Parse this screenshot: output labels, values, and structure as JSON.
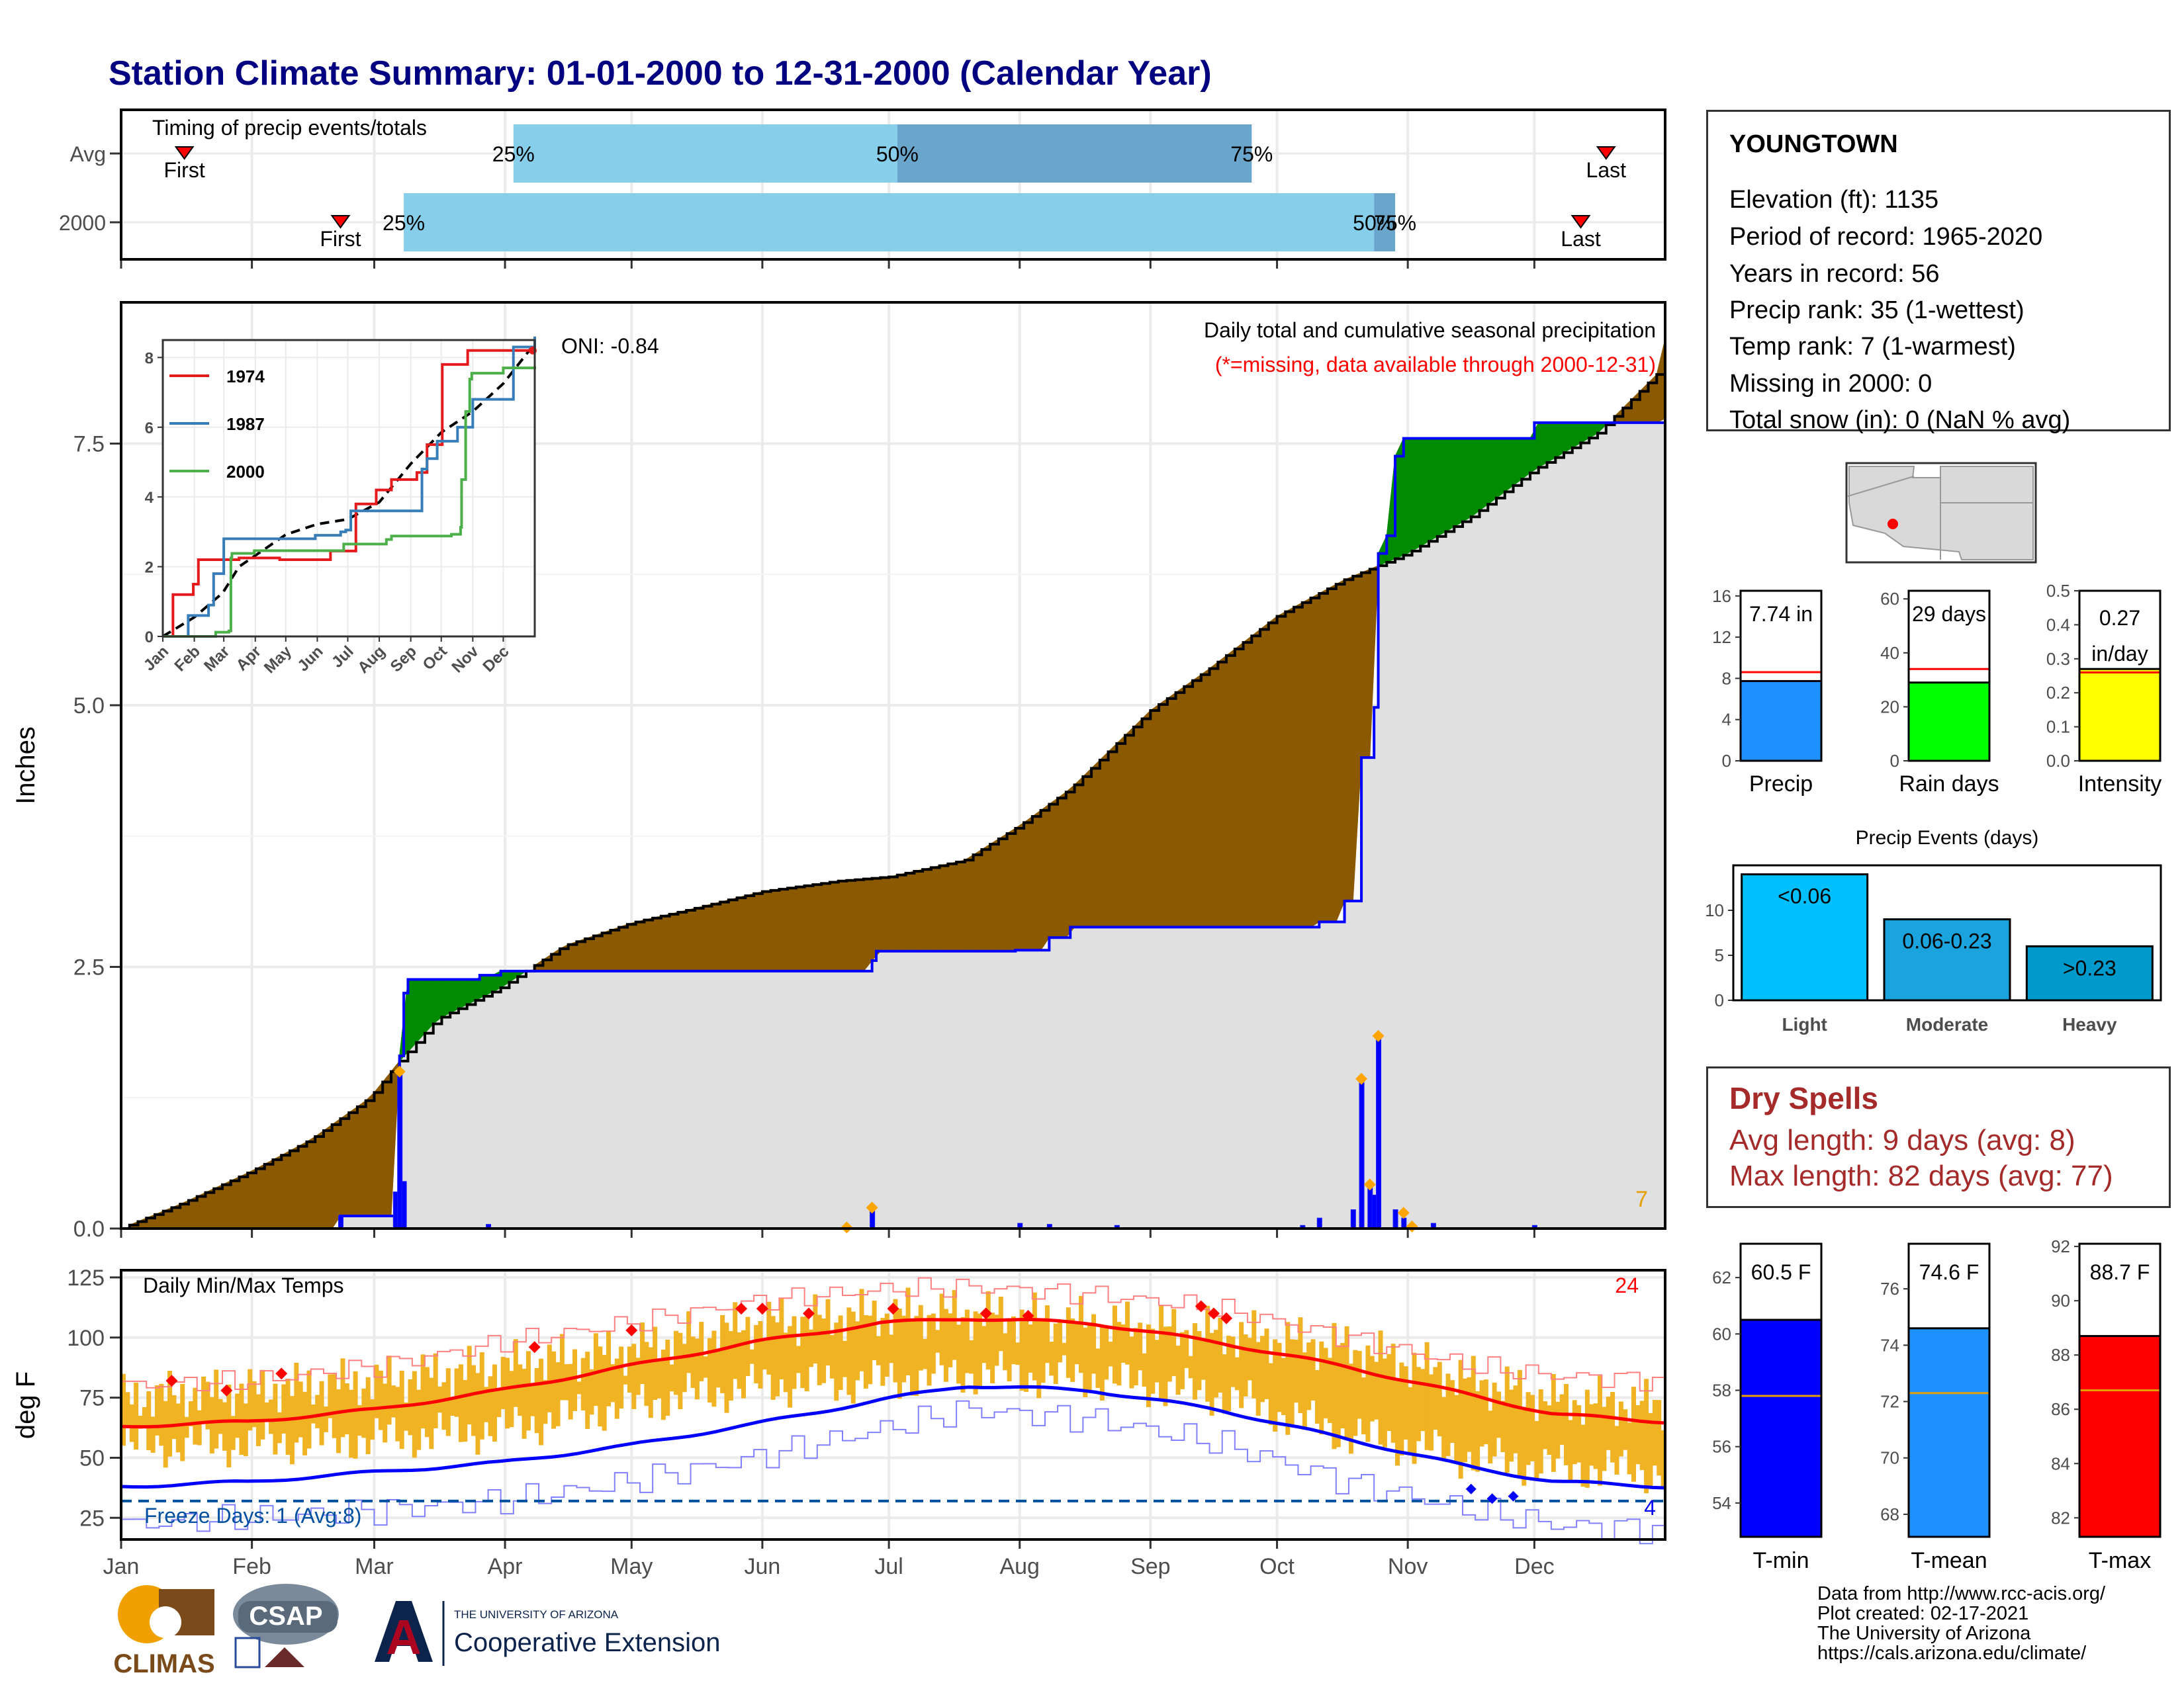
{
  "title": "Station Climate Summary: 01-01-2000 to 12-31-2000 (Calendar Year)",
  "timing": {
    "label": "Timing of precip events/totals",
    "rows": [
      "Avg",
      "2000"
    ],
    "avg": {
      "first_doy": 15,
      "q25_doy": 93,
      "q50_doy": 184,
      "q75_doy": 268,
      "last_doy": 352
    },
    "yr": {
      "first_doy": 52,
      "q25_doy": 67,
      "q50_doy": 297,
      "q75_doy": 302,
      "last_doy": 346
    },
    "first_label": "First",
    "last_label": "Last",
    "p25": "25%",
    "p50": "50%",
    "p75": "75%"
  },
  "months": [
    "Jan",
    "Feb",
    "Mar",
    "Apr",
    "May",
    "Jun",
    "Jul",
    "Aug",
    "Sep",
    "Oct",
    "Nov",
    "Dec"
  ],
  "precip_panel": {
    "ylabel": "Inches",
    "yticks": [
      0.0,
      2.5,
      5.0,
      7.5
    ],
    "ymax": 8.85,
    "caption": "Daily total and cumulative seasonal precipitation",
    "missing_note": "(*=missing, data available through 2000-12-31)",
    "oni": "ONI: -0.84",
    "corner_count": "7",
    "avg_cum": [
      [
        0,
        0
      ],
      [
        15,
        0.25
      ],
      [
        31,
        0.55
      ],
      [
        45,
        0.85
      ],
      [
        59,
        1.25
      ],
      [
        66,
        1.6
      ],
      [
        75,
        2.0
      ],
      [
        90,
        2.3
      ],
      [
        105,
        2.7
      ],
      [
        121,
        2.92
      ],
      [
        135,
        3.05
      ],
      [
        152,
        3.22
      ],
      [
        170,
        3.32
      ],
      [
        182,
        3.36
      ],
      [
        200,
        3.52
      ],
      [
        213,
        3.85
      ],
      [
        225,
        4.2
      ],
      [
        244,
        4.95
      ],
      [
        258,
        5.35
      ],
      [
        274,
        5.85
      ],
      [
        290,
        6.2
      ],
      [
        305,
        6.45
      ],
      [
        320,
        6.8
      ],
      [
        335,
        7.25
      ],
      [
        350,
        7.6
      ],
      [
        365,
        8.2
      ],
      [
        366,
        8.5
      ]
    ],
    "yr_cum": [
      [
        0,
        0
      ],
      [
        51,
        0
      ],
      [
        52,
        0.12
      ],
      [
        64,
        0.12
      ],
      [
        65,
        0.16
      ],
      [
        66,
        1.65
      ],
      [
        67,
        2.25
      ],
      [
        68,
        2.38
      ],
      [
        85,
        2.42
      ],
      [
        90,
        2.46
      ],
      [
        150,
        2.46
      ],
      [
        172,
        2.46
      ],
      [
        178,
        2.56
      ],
      [
        179,
        2.65
      ],
      [
        212,
        2.66
      ],
      [
        220,
        2.78
      ],
      [
        225,
        2.88
      ],
      [
        280,
        2.88
      ],
      [
        284,
        2.93
      ],
      [
        290,
        3.13
      ],
      [
        293,
        3.13
      ],
      [
        294,
        4.5
      ],
      [
        297,
        4.98
      ],
      [
        298,
        6.45
      ],
      [
        300,
        6.62
      ],
      [
        302,
        7.38
      ],
      [
        303,
        7.38
      ],
      [
        304,
        7.55
      ],
      [
        320,
        7.55
      ],
      [
        335,
        7.7
      ],
      [
        366,
        7.74
      ]
    ],
    "daily_bars": [
      [
        52,
        0.12
      ],
      [
        65,
        0.35
      ],
      [
        66,
        1.5
      ],
      [
        67,
        0.45
      ],
      [
        87,
        0.04
      ],
      [
        178,
        0.2
      ],
      [
        213,
        0.05
      ],
      [
        220,
        0.04
      ],
      [
        236,
        0.03
      ],
      [
        280,
        0.03
      ],
      [
        284,
        0.1
      ],
      [
        292,
        0.18
      ],
      [
        294,
        1.4
      ],
      [
        296,
        0.42
      ],
      [
        297,
        0.32
      ],
      [
        298,
        1.83
      ],
      [
        302,
        0.18
      ],
      [
        304,
        0.1
      ],
      [
        311,
        0.05
      ],
      [
        335,
        0.03
      ]
    ],
    "daily_marks": [
      [
        66,
        1.5
      ],
      [
        178,
        0.2
      ],
      [
        172,
        0.01
      ],
      [
        294,
        1.43
      ],
      [
        296,
        0.42
      ],
      [
        298,
        1.84
      ],
      [
        304,
        0.15
      ],
      [
        306,
        0.02
      ]
    ]
  },
  "inset": {
    "yticks": [
      0,
      2,
      4,
      6,
      8
    ],
    "ymax": 8.5,
    "months": [
      "Jan",
      "Feb",
      "Mar",
      "Apr",
      "May",
      "Jun",
      "Jul",
      "Aug",
      "Sep",
      "Oct",
      "Nov",
      "Dec"
    ],
    "series": [
      {
        "name": "1974",
        "color": "#e41a1c",
        "points": [
          [
            0,
            0
          ],
          [
            10,
            1.2
          ],
          [
            20,
            1.2
          ],
          [
            30,
            1.5
          ],
          [
            35,
            2.2
          ],
          [
            60,
            2.2
          ],
          [
            75,
            2.25
          ],
          [
            90,
            2.25
          ],
          [
            115,
            2.2
          ],
          [
            150,
            2.2
          ],
          [
            165,
            2.45
          ],
          [
            180,
            2.45
          ],
          [
            190,
            3.8
          ],
          [
            200,
            3.8
          ],
          [
            210,
            4.2
          ],
          [
            225,
            4.5
          ],
          [
            240,
            4.5
          ],
          [
            250,
            4.7
          ],
          [
            260,
            5.5
          ],
          [
            275,
            7.8
          ],
          [
            290,
            7.8
          ],
          [
            300,
            8.2
          ],
          [
            335,
            8.2
          ],
          [
            366,
            8.6
          ]
        ]
      },
      {
        "name": "1987",
        "color": "#377eb8",
        "points": [
          [
            0,
            0
          ],
          [
            25,
            0.6
          ],
          [
            45,
            0.9
          ],
          [
            50,
            1.8
          ],
          [
            60,
            2.8
          ],
          [
            75,
            2.8
          ],
          [
            90,
            2.8
          ],
          [
            150,
            2.9
          ],
          [
            175,
            3.0
          ],
          [
            180,
            3.05
          ],
          [
            185,
            3.6
          ],
          [
            210,
            3.6
          ],
          [
            230,
            3.6
          ],
          [
            250,
            3.6
          ],
          [
            255,
            4.8
          ],
          [
            260,
            5.1
          ],
          [
            270,
            5.6
          ],
          [
            290,
            6.0
          ],
          [
            305,
            6.8
          ],
          [
            320,
            6.8
          ],
          [
            340,
            6.8
          ],
          [
            345,
            8.3
          ],
          [
            366,
            8.6
          ]
        ]
      },
      {
        "name": "2000",
        "color": "#4daf4a",
        "points": [
          [
            0,
            0
          ],
          [
            51,
            0
          ],
          [
            52,
            0.12
          ],
          [
            65,
            0.16
          ],
          [
            67,
            2.25
          ],
          [
            68,
            2.38
          ],
          [
            90,
            2.46
          ],
          [
            172,
            2.46
          ],
          [
            178,
            2.65
          ],
          [
            220,
            2.78
          ],
          [
            225,
            2.88
          ],
          [
            284,
            2.93
          ],
          [
            293,
            3.13
          ],
          [
            294,
            4.5
          ],
          [
            298,
            6.45
          ],
          [
            302,
            7.38
          ],
          [
            304,
            7.55
          ],
          [
            335,
            7.7
          ],
          [
            366,
            7.74
          ]
        ]
      }
    ],
    "avg_points": [
      [
        0,
        0
      ],
      [
        31,
        0.55
      ],
      [
        59,
        1.25
      ],
      [
        75,
        2.0
      ],
      [
        90,
        2.3
      ],
      [
        121,
        2.92
      ],
      [
        152,
        3.22
      ],
      [
        182,
        3.36
      ],
      [
        213,
        3.85
      ],
      [
        244,
        4.95
      ],
      [
        274,
        5.85
      ],
      [
        305,
        6.45
      ],
      [
        335,
        7.25
      ],
      [
        366,
        8.4
      ]
    ]
  },
  "temp_panel": {
    "ylabel": "deg F",
    "label": "Daily Min/Max Temps",
    "yticks": [
      25,
      50,
      75,
      100,
      125
    ],
    "ymin": 16,
    "ymax": 128,
    "freeze_label": "Freeze Days: 1 (Avg:8)",
    "freeze_line": 32,
    "record_count": "24",
    "freeze_count": "4",
    "avg_max": [
      [
        0,
        63
      ],
      [
        30,
        65
      ],
      [
        60,
        70
      ],
      [
        90,
        78
      ],
      [
        120,
        88
      ],
      [
        150,
        98
      ],
      [
        180,
        106
      ],
      [
        200,
        108
      ],
      [
        230,
        106
      ],
      [
        260,
        98
      ],
      [
        290,
        88
      ],
      [
        320,
        76
      ],
      [
        340,
        68
      ],
      [
        366,
        65
      ]
    ],
    "avg_min": [
      [
        0,
        38
      ],
      [
        30,
        40
      ],
      [
        60,
        44
      ],
      [
        90,
        48
      ],
      [
        120,
        55
      ],
      [
        150,
        64
      ],
      [
        180,
        74
      ],
      [
        200,
        80
      ],
      [
        230,
        78
      ],
      [
        260,
        70
      ],
      [
        290,
        58
      ],
      [
        320,
        46
      ],
      [
        340,
        40
      ],
      [
        366,
        38
      ]
    ],
    "rec_max": [
      [
        0,
        80
      ],
      [
        30,
        82
      ],
      [
        60,
        88
      ],
      [
        90,
        98
      ],
      [
        120,
        106
      ],
      [
        150,
        115
      ],
      [
        180,
        120
      ],
      [
        200,
        121
      ],
      [
        230,
        118
      ],
      [
        260,
        112
      ],
      [
        290,
        100
      ],
      [
        320,
        88
      ],
      [
        340,
        84
      ],
      [
        366,
        82
      ]
    ],
    "rec_min": [
      [
        0,
        22
      ],
      [
        30,
        25
      ],
      [
        60,
        28
      ],
      [
        90,
        32
      ],
      [
        120,
        40
      ],
      [
        150,
        50
      ],
      [
        180,
        62
      ],
      [
        200,
        70
      ],
      [
        230,
        66
      ],
      [
        260,
        56
      ],
      [
        290,
        40
      ],
      [
        320,
        28
      ],
      [
        340,
        22
      ],
      [
        366,
        20
      ]
    ],
    "record_highs": [
      [
        12,
        82
      ],
      [
        25,
        78
      ],
      [
        38,
        85
      ],
      [
        98,
        96
      ],
      [
        121,
        103
      ],
      [
        147,
        112
      ],
      [
        152,
        112
      ],
      [
        163,
        110
      ],
      [
        183,
        112
      ],
      [
        205,
        110
      ],
      [
        215,
        109
      ],
      [
        256,
        113
      ],
      [
        259,
        110
      ],
      [
        262,
        108
      ]
    ],
    "record_lows": [
      [
        320,
        37
      ],
      [
        325,
        33
      ],
      [
        330,
        34
      ]
    ],
    "band": [
      [
        0,
        55,
        75
      ],
      [
        30,
        56,
        78
      ],
      [
        60,
        58,
        82
      ],
      [
        90,
        62,
        88
      ],
      [
        120,
        72,
        95
      ],
      [
        150,
        80,
        106
      ],
      [
        180,
        82,
        110
      ],
      [
        200,
        85,
        110
      ],
      [
        230,
        83,
        106
      ],
      [
        260,
        76,
        102
      ],
      [
        290,
        60,
        96
      ],
      [
        320,
        50,
        82
      ],
      [
        340,
        46,
        74
      ],
      [
        366,
        44,
        72
      ]
    ]
  },
  "station": {
    "name": "YOUNGTOWN",
    "lines": [
      "Elevation (ft): 1135",
      "Period of record: 1965-2020",
      "Years in record: 56",
      "Precip rank: 35 (1-wettest)",
      "Temp rank: 7 (1-warmest)",
      "Missing in 2000: 0",
      "Total snow (in): 0 (NaN % avg)"
    ]
  },
  "stats": [
    {
      "label": "Precip",
      "value_text": "7.74 in",
      "value": 7.74,
      "avg": 8.6,
      "ymax": 16.5,
      "ticks": [
        0,
        4,
        8,
        12,
        16
      ],
      "color": "#1e90ff"
    },
    {
      "label": "Rain days",
      "value_text": "29 days",
      "value": 29,
      "avg": 34,
      "ymax": 63,
      "ticks": [
        0,
        20,
        40,
        60
      ],
      "color": "#00ff00"
    },
    {
      "label": "Intensity",
      "value_text": "0.27\nin/day",
      "value": 0.27,
      "avg": 0.26,
      "ymax": 0.5,
      "ticks": [
        0.0,
        0.1,
        0.2,
        0.3,
        0.4,
        0.5
      ],
      "color": "#ffff00"
    }
  ],
  "events": {
    "title": "Precip Events (days)",
    "ymax": 15,
    "ticks": [
      0,
      5,
      10
    ],
    "bars": [
      {
        "cat": "Light",
        "label": "<0.06",
        "value": 14,
        "color": "#00bfff"
      },
      {
        "cat": "Moderate",
        "label": "0.06-0.23",
        "value": 9,
        "color": "#1aa3dd"
      },
      {
        "cat": "Heavy",
        "label": ">0.23",
        "value": 6,
        "color": "#0099cc"
      }
    ]
  },
  "dry": {
    "title": "Dry Spells",
    "avg_line": "Avg length: 9 days (avg: 8)",
    "max_line": "Max length: 82 days (avg: 77)"
  },
  "temps": [
    {
      "label": "T-min",
      "value_text": "60.5 F",
      "value": 60.5,
      "avg": 57.8,
      "ymin": 52.8,
      "ymax": 63.2,
      "ticks": [
        54,
        56,
        58,
        60,
        62
      ],
      "color": "#0000ff"
    },
    {
      "label": "T-mean",
      "value_text": "74.6 F",
      "value": 74.6,
      "avg": 72.3,
      "ymin": 67.2,
      "ymax": 77.6,
      "ticks": [
        68,
        70,
        72,
        74,
        76
      ],
      "color": "#1e90ff"
    },
    {
      "label": "T-max",
      "value_text": "88.7 F",
      "value": 88.7,
      "avg": 86.7,
      "ymin": 81.3,
      "ymax": 92.1,
      "ticks": [
        82,
        84,
        86,
        88,
        90,
        92
      ],
      "color": "#ff0000"
    }
  ],
  "footer": {
    "lines": [
      "Data from http://www.rcc-acis.org/",
      "Plot created: 02-17-2021",
      "The University of Arizona",
      "https://cals.arizona.edu/climate/"
    ],
    "climas": "CLIMAS",
    "csap": "CSAP",
    "ua_small": "THE UNIVERSITY OF ARIZONA",
    "ua_big": "Cooperative Extension",
    "ua_letter": "A"
  }
}
